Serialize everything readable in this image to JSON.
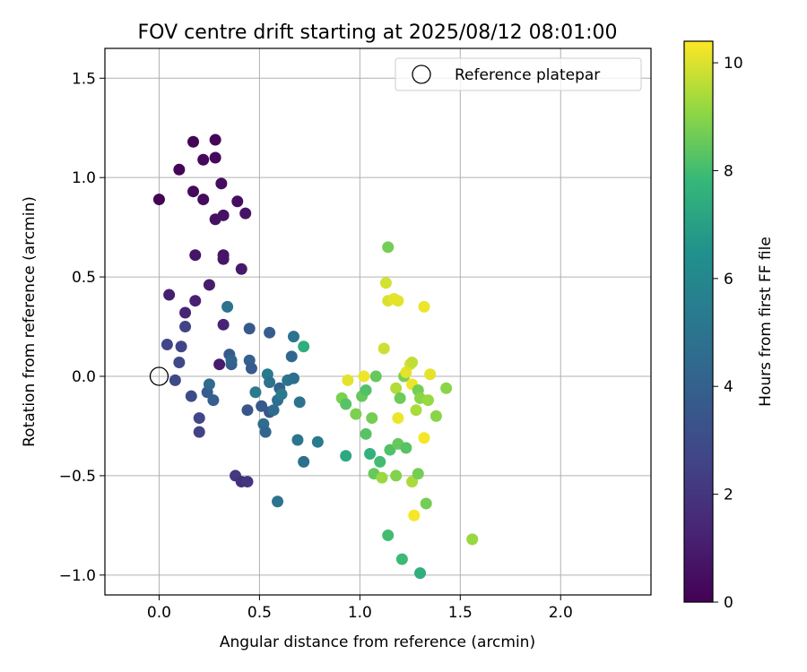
{
  "chart_data": {
    "type": "scatter",
    "title": "FOV centre drift starting at 2025/08/12 08:01:00",
    "xlabel": "Angular distance from reference (arcmin)",
    "ylabel": "Rotation from reference (arcmin)",
    "xlim": [
      -0.27,
      2.45
    ],
    "ylim": [
      -1.1,
      1.65
    ],
    "xticks": [
      0.0,
      0.5,
      1.0,
      1.5,
      2.0
    ],
    "xtick_labels": [
      "0.0",
      "0.5",
      "1.0",
      "1.5",
      "2.0"
    ],
    "yticks": [
      -1.0,
      -0.5,
      0.0,
      0.5,
      1.0,
      1.5
    ],
    "ytick_labels": [
      "−1.0",
      "−0.5",
      "0.0",
      "0.5",
      "1.0",
      "1.5"
    ],
    "grid": true,
    "legend": {
      "position": "top-right",
      "entries": [
        "Reference platepar"
      ]
    },
    "reference_point": {
      "x": 0.0,
      "y": 0.0,
      "marker": "hollow-circle"
    },
    "colorbar": {
      "label": "Hours from first FF file",
      "colormap": "viridis",
      "range": [
        0,
        10.4
      ],
      "ticks": [
        0,
        2,
        4,
        6,
        8,
        10
      ],
      "tick_labels": [
        "0",
        "2",
        "4",
        "6",
        "8",
        "10"
      ]
    },
    "series": [
      {
        "x_unit": "arcmin",
        "y_unit": "arcmin",
        "c_unit": "hours",
        "points": [
          {
            "x": 0.0,
            "y": 0.89,
            "c": 0.05
          },
          {
            "x": 0.1,
            "y": 1.04,
            "c": 0.1
          },
          {
            "x": 0.17,
            "y": 1.18,
            "c": 0.15
          },
          {
            "x": 0.28,
            "y": 1.19,
            "c": 0.2
          },
          {
            "x": 0.22,
            "y": 1.09,
            "c": 0.25
          },
          {
            "x": 0.28,
            "y": 1.1,
            "c": 0.3
          },
          {
            "x": 0.17,
            "y": 0.93,
            "c": 0.35
          },
          {
            "x": 0.22,
            "y": 0.89,
            "c": 0.4
          },
          {
            "x": 0.31,
            "y": 0.97,
            "c": 0.45
          },
          {
            "x": 0.39,
            "y": 0.88,
            "c": 0.5
          },
          {
            "x": 0.28,
            "y": 0.79,
            "c": 0.55
          },
          {
            "x": 0.32,
            "y": 0.81,
            "c": 0.6
          },
          {
            "x": 0.43,
            "y": 0.82,
            "c": 0.65
          },
          {
            "x": 0.32,
            "y": 0.61,
            "c": 0.7
          },
          {
            "x": 0.18,
            "y": 0.61,
            "c": 0.75
          },
          {
            "x": 0.32,
            "y": 0.59,
            "c": 0.8
          },
          {
            "x": 0.41,
            "y": 0.54,
            "c": 0.9
          },
          {
            "x": 0.25,
            "y": 0.46,
            "c": 1.0
          },
          {
            "x": 0.05,
            "y": 0.41,
            "c": 1.1
          },
          {
            "x": 0.18,
            "y": 0.38,
            "c": 1.2
          },
          {
            "x": 0.13,
            "y": 0.32,
            "c": 1.3
          },
          {
            "x": 0.32,
            "y": 0.26,
            "c": 1.3
          },
          {
            "x": 0.3,
            "y": 0.06,
            "c": 1.0
          },
          {
            "x": 0.13,
            "y": 0.25,
            "c": 2.5
          },
          {
            "x": 0.04,
            "y": 0.16,
            "c": 2.7
          },
          {
            "x": 0.11,
            "y": 0.15,
            "c": 2.6
          },
          {
            "x": 0.1,
            "y": 0.07,
            "c": 2.8
          },
          {
            "x": 0.08,
            "y": -0.02,
            "c": 2.9
          },
          {
            "x": 0.16,
            "y": -0.1,
            "c": 3.0
          },
          {
            "x": 0.2,
            "y": -0.21,
            "c": 2.7
          },
          {
            "x": 0.2,
            "y": -0.28,
            "c": 2.5
          },
          {
            "x": 0.24,
            "y": -0.08,
            "c": 3.8
          },
          {
            "x": 0.25,
            "y": -0.04,
            "c": 4.5
          },
          {
            "x": 0.27,
            "y": -0.12,
            "c": 3.9
          },
          {
            "x": 0.38,
            "y": -0.5,
            "c": 2.1
          },
          {
            "x": 0.41,
            "y": -0.53,
            "c": 1.8
          },
          {
            "x": 0.44,
            "y": -0.53,
            "c": 2.0
          },
          {
            "x": 0.35,
            "y": 0.11,
            "c": 3.6
          },
          {
            "x": 0.36,
            "y": 0.06,
            "c": 3.8
          },
          {
            "x": 0.36,
            "y": 0.08,
            "c": 4.2
          },
          {
            "x": 0.34,
            "y": 0.35,
            "c": 4.9
          },
          {
            "x": 0.45,
            "y": 0.24,
            "c": 3.6
          },
          {
            "x": 0.45,
            "y": 0.08,
            "c": 4.0
          },
          {
            "x": 0.46,
            "y": 0.04,
            "c": 3.7
          },
          {
            "x": 0.44,
            "y": -0.17,
            "c": 3.4
          },
          {
            "x": 0.48,
            "y": -0.08,
            "c": 5.3
          },
          {
            "x": 0.51,
            "y": -0.15,
            "c": 3.6
          },
          {
            "x": 0.52,
            "y": -0.24,
            "c": 4.6
          },
          {
            "x": 0.53,
            "y": -0.28,
            "c": 4.2
          },
          {
            "x": 0.54,
            "y": 0.01,
            "c": 5.3
          },
          {
            "x": 0.55,
            "y": -0.03,
            "c": 4.9
          },
          {
            "x": 0.55,
            "y": -0.18,
            "c": 3.5
          },
          {
            "x": 0.57,
            "y": -0.17,
            "c": 4.6
          },
          {
            "x": 0.55,
            "y": 0.22,
            "c": 3.8
          },
          {
            "x": 0.59,
            "y": -0.12,
            "c": 4.8
          },
          {
            "x": 0.6,
            "y": -0.06,
            "c": 4.1
          },
          {
            "x": 0.61,
            "y": -0.09,
            "c": 5.3
          },
          {
            "x": 0.59,
            "y": -0.63,
            "c": 5.0
          },
          {
            "x": 0.64,
            "y": -0.02,
            "c": 5.0
          },
          {
            "x": 0.66,
            "y": 0.1,
            "c": 4.3
          },
          {
            "x": 0.67,
            "y": 0.2,
            "c": 4.9
          },
          {
            "x": 0.67,
            "y": -0.01,
            "c": 4.7
          },
          {
            "x": 0.69,
            "y": -0.32,
            "c": 5.1
          },
          {
            "x": 0.7,
            "y": -0.13,
            "c": 5.0
          },
          {
            "x": 0.72,
            "y": -0.43,
            "c": 4.8
          },
          {
            "x": 0.72,
            "y": 0.15,
            "c": 7.5
          },
          {
            "x": 0.79,
            "y": -0.33,
            "c": 5.3
          },
          {
            "x": 0.91,
            "y": -0.11,
            "c": 8.8
          },
          {
            "x": 0.93,
            "y": -0.14,
            "c": 8.3
          },
          {
            "x": 0.94,
            "y": -0.02,
            "c": 10.1
          },
          {
            "x": 0.93,
            "y": -0.4,
            "c": 7.3
          },
          {
            "x": 0.98,
            "y": -0.19,
            "c": 8.8
          },
          {
            "x": 1.01,
            "y": -0.1,
            "c": 8.5
          },
          {
            "x": 1.02,
            "y": 0.0,
            "c": 10.2
          },
          {
            "x": 1.03,
            "y": -0.07,
            "c": 8.2
          },
          {
            "x": 1.03,
            "y": -0.29,
            "c": 8.3
          },
          {
            "x": 1.05,
            "y": -0.39,
            "c": 7.6
          },
          {
            "x": 1.06,
            "y": -0.21,
            "c": 8.7
          },
          {
            "x": 1.07,
            "y": -0.49,
            "c": 8.5
          },
          {
            "x": 1.08,
            "y": 0.0,
            "c": 8.5
          },
          {
            "x": 1.1,
            "y": -0.43,
            "c": 8.0
          },
          {
            "x": 1.11,
            "y": -0.51,
            "c": 9.2
          },
          {
            "x": 1.12,
            "y": 0.14,
            "c": 9.8
          },
          {
            "x": 1.13,
            "y": 0.47,
            "c": 9.9
          },
          {
            "x": 1.14,
            "y": 0.38,
            "c": 10.0
          },
          {
            "x": 1.14,
            "y": 0.65,
            "c": 8.7
          },
          {
            "x": 1.14,
            "y": -0.8,
            "c": 8.0
          },
          {
            "x": 1.15,
            "y": -0.37,
            "c": 8.2
          },
          {
            "x": 1.17,
            "y": 0.39,
            "c": 10.1
          },
          {
            "x": 1.18,
            "y": -0.5,
            "c": 8.9
          },
          {
            "x": 1.18,
            "y": -0.06,
            "c": 9.5
          },
          {
            "x": 1.19,
            "y": -0.21,
            "c": 10.2
          },
          {
            "x": 1.19,
            "y": 0.38,
            "c": 10.1
          },
          {
            "x": 1.19,
            "y": -0.34,
            "c": 8.5
          },
          {
            "x": 1.2,
            "y": -0.11,
            "c": 8.6
          },
          {
            "x": 1.21,
            "y": -0.92,
            "c": 7.9
          },
          {
            "x": 1.22,
            "y": 0.0,
            "c": 8.8
          },
          {
            "x": 1.23,
            "y": 0.02,
            "c": 10.1
          },
          {
            "x": 1.23,
            "y": -0.36,
            "c": 8.3
          },
          {
            "x": 1.25,
            "y": 0.06,
            "c": 10.0
          },
          {
            "x": 1.26,
            "y": 0.07,
            "c": 9.7
          },
          {
            "x": 1.26,
            "y": -0.04,
            "c": 10.2
          },
          {
            "x": 1.26,
            "y": -0.53,
            "c": 9.4
          },
          {
            "x": 1.27,
            "y": -0.7,
            "c": 10.3
          },
          {
            "x": 1.28,
            "y": -0.17,
            "c": 9.4
          },
          {
            "x": 1.29,
            "y": -0.07,
            "c": 8.7
          },
          {
            "x": 1.29,
            "y": -0.49,
            "c": 8.7
          },
          {
            "x": 1.3,
            "y": -0.99,
            "c": 7.5
          },
          {
            "x": 1.3,
            "y": -0.11,
            "c": 9.0
          },
          {
            "x": 1.32,
            "y": 0.35,
            "c": 10.2
          },
          {
            "x": 1.32,
            "y": -0.31,
            "c": 10.3
          },
          {
            "x": 1.33,
            "y": -0.64,
            "c": 8.7
          },
          {
            "x": 1.34,
            "y": -0.12,
            "c": 9.2
          },
          {
            "x": 1.35,
            "y": 0.01,
            "c": 10.1
          },
          {
            "x": 1.38,
            "y": -0.2,
            "c": 9.0
          },
          {
            "x": 1.43,
            "y": -0.06,
            "c": 9.0
          },
          {
            "x": 1.56,
            "y": -0.82,
            "c": 9.2
          }
        ]
      }
    ]
  }
}
